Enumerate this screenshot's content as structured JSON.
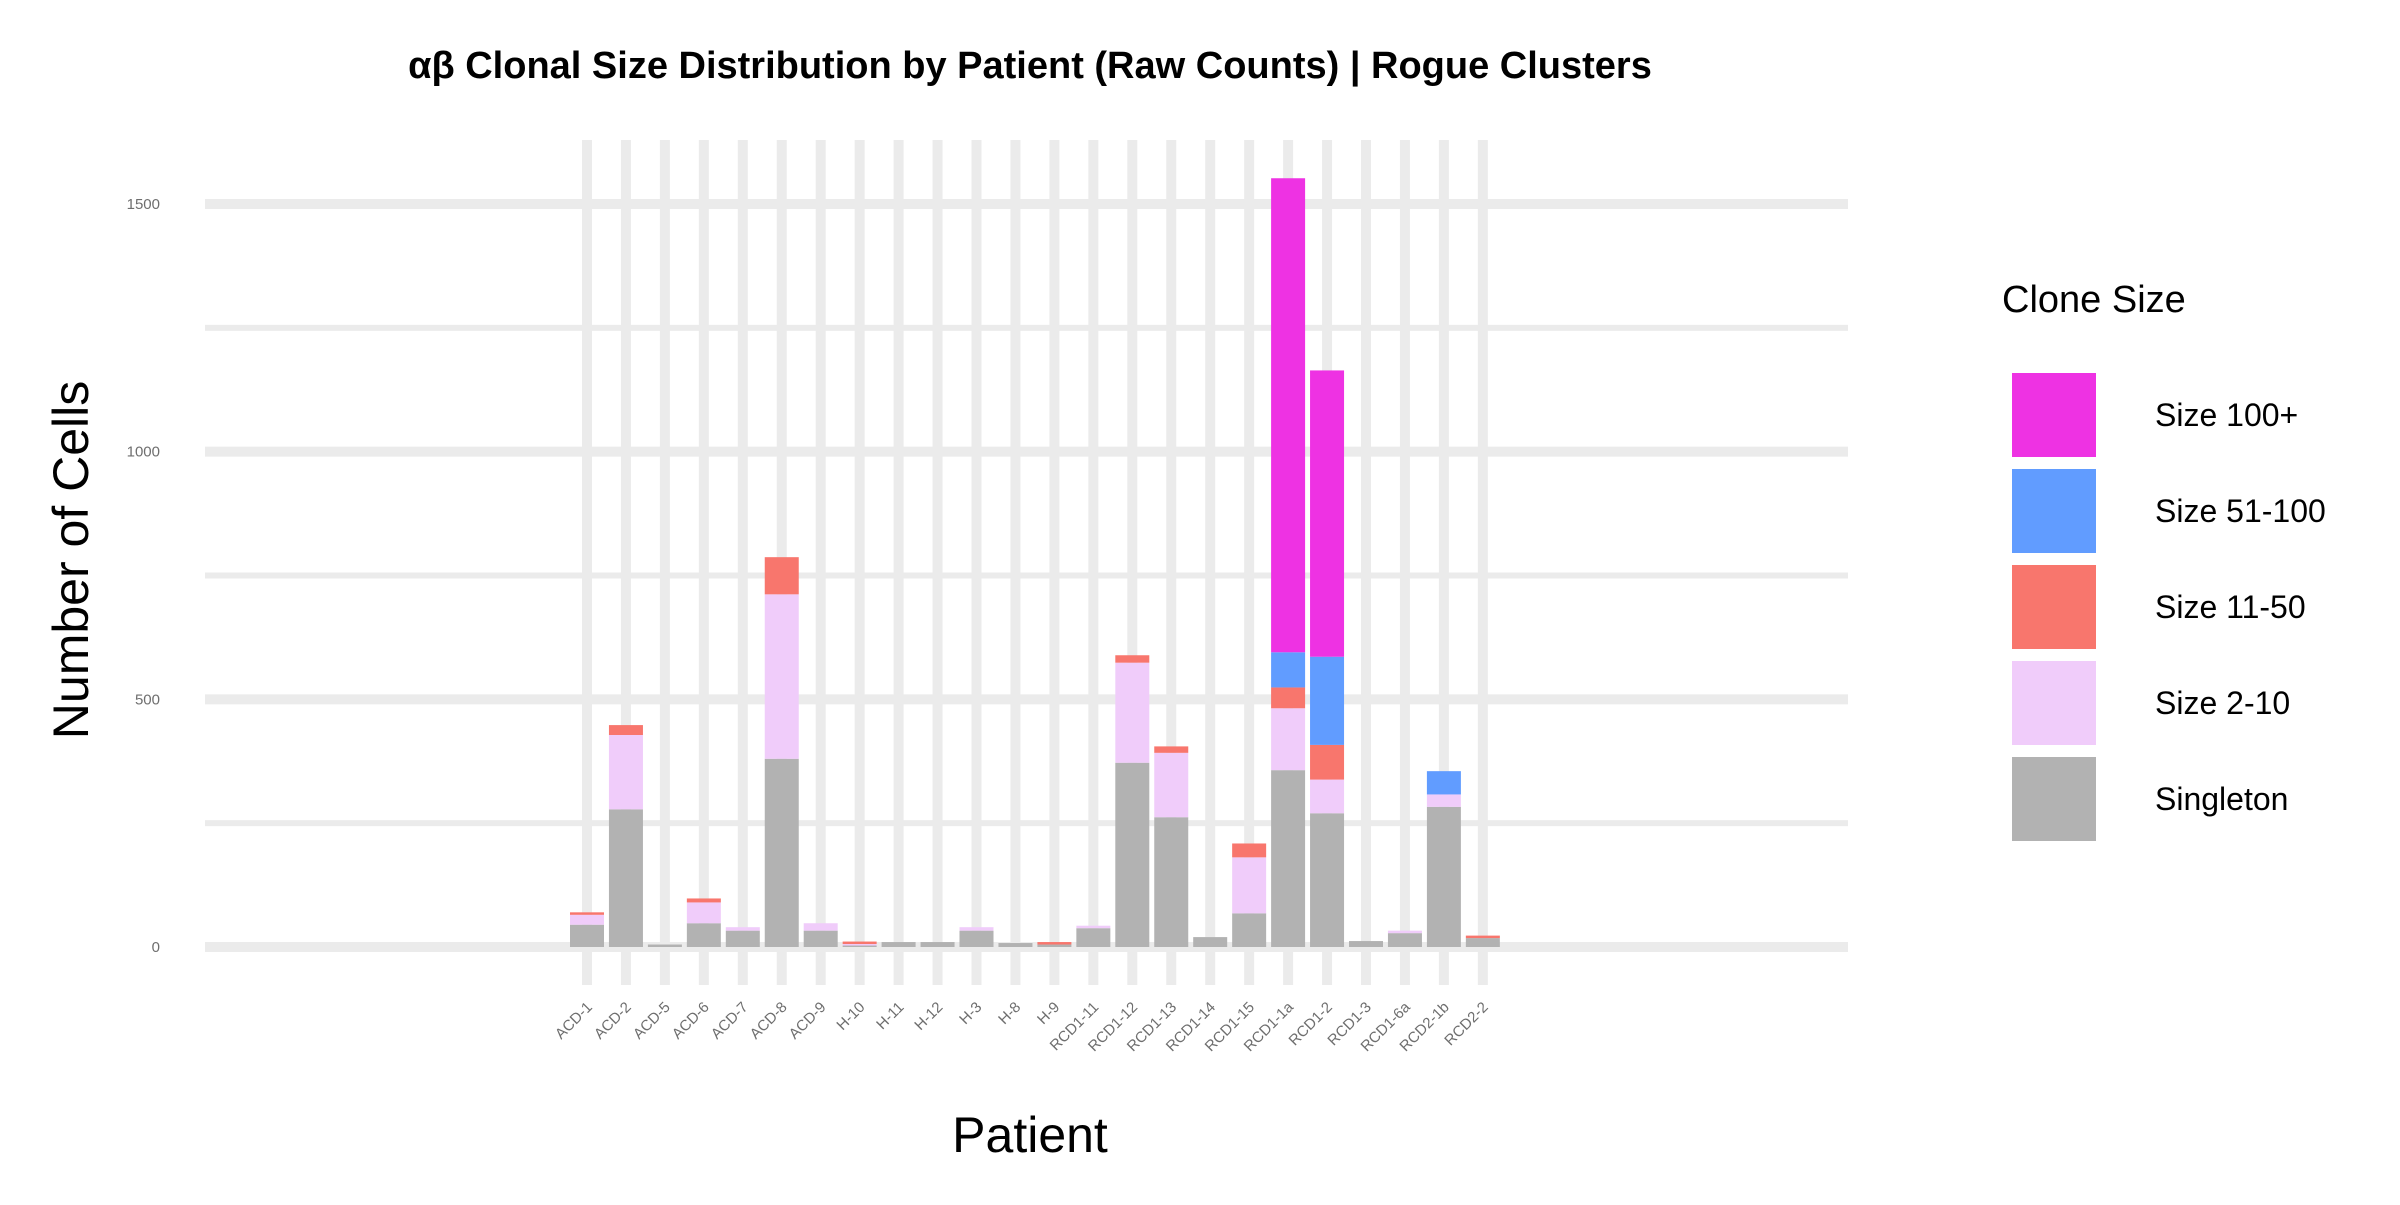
{
  "chart_data": {
    "type": "bar",
    "stacked": true,
    "title": "αβ Clonal Size Distribution by Patient (Raw Counts) | Rogue Clusters",
    "xlabel": "Patient",
    "ylabel": "Number of Cells",
    "ylim": [
      -75,
      1625
    ],
    "yticks": [
      0,
      500,
      1000,
      1500
    ],
    "ygrid_minor": [
      250,
      750,
      1250
    ],
    "grid": true,
    "legend_title": "Clone Size",
    "legend_position": "right",
    "categories": [
      "ACD-1",
      "ACD-2",
      "ACD-5",
      "ACD-6",
      "ACD-7",
      "ACD-8",
      "ACD-9",
      "H-10",
      "H-11",
      "H-12",
      "H-3",
      "H-8",
      "H-9",
      "RCD1-11",
      "RCD1-12",
      "RCD1-13",
      "RCD1-14",
      "RCD1-15",
      "RCD1-1a",
      "RCD1-2",
      "RCD1-3",
      "RCD1-6a",
      "RCD2-1b",
      "RCD2-2"
    ],
    "series": [
      {
        "name": "Singleton",
        "color": "#B2B2B2",
        "values": [
          45,
          278,
          5,
          48,
          33,
          380,
          33,
          3,
          10,
          10,
          33,
          8,
          5,
          38,
          372,
          262,
          20,
          68,
          357,
          270,
          12,
          28,
          283,
          18
        ]
      },
      {
        "name": "Size 2-10",
        "color": "#F0CCFA",
        "values": [
          20,
          150,
          0,
          42,
          7,
          332,
          15,
          3,
          0,
          0,
          7,
          0,
          0,
          5,
          202,
          130,
          0,
          113,
          125,
          68,
          0,
          5,
          25,
          0
        ]
      },
      {
        "name": "Size 11-50",
        "color": "#F8766D",
        "values": [
          5,
          20,
          0,
          8,
          0,
          75,
          0,
          5,
          0,
          0,
          0,
          0,
          5,
          0,
          15,
          13,
          0,
          28,
          42,
          70,
          0,
          0,
          0,
          5
        ]
      },
      {
        "name": "Size 51-100",
        "color": "#619CFF",
        "values": [
          0,
          0,
          0,
          0,
          0,
          0,
          0,
          0,
          0,
          0,
          0,
          0,
          0,
          0,
          0,
          0,
          0,
          0,
          71,
          178,
          0,
          0,
          47,
          0
        ]
      },
      {
        "name": "Size 100+",
        "color": "#EE32E3",
        "values": [
          0,
          0,
          0,
          0,
          0,
          0,
          0,
          0,
          0,
          0,
          0,
          0,
          0,
          0,
          0,
          0,
          0,
          0,
          957,
          578,
          0,
          0,
          0,
          0
        ]
      }
    ],
    "legend_order": [
      "Size 100+",
      "Size 51-100",
      "Size 11-50",
      "Size 2-10",
      "Singleton"
    ]
  }
}
